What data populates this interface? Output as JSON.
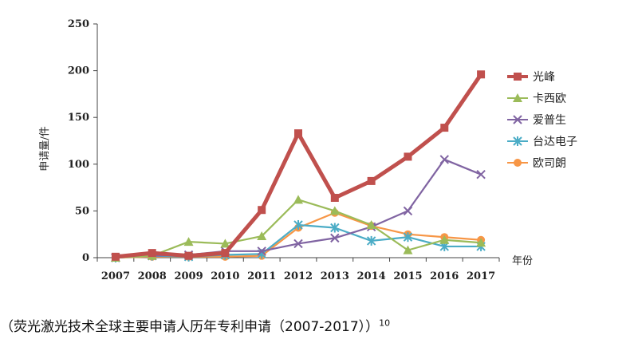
{
  "chart_data": {
    "type": "line",
    "title": "",
    "xlabel": "年份",
    "ylabel": "申请量/件",
    "categories": [
      "2007",
      "2008",
      "2009",
      "2010",
      "2011",
      "2012",
      "2013",
      "2014",
      "2015",
      "2016",
      "2017"
    ],
    "ylim": [
      0,
      250
    ],
    "yticks": [
      "0",
      "50",
      "100",
      "150",
      "200",
      "250"
    ],
    "grid": false,
    "legend_position": "right",
    "series": [
      {
        "name": "光峰",
        "color": "#c0504d",
        "marker": "square",
        "values": [
          1,
          5,
          2,
          5,
          51,
          133,
          64,
          82,
          108,
          139,
          196
        ]
      },
      {
        "name": "卡西欧",
        "color": "#9bbb59",
        "marker": "triangle",
        "values": [
          0,
          2,
          17,
          15,
          23,
          62,
          50,
          35,
          8,
          19,
          16
        ]
      },
      {
        "name": "爱普生",
        "color": "#8064a2",
        "marker": "x",
        "values": [
          0,
          2,
          3,
          7,
          7,
          15,
          21,
          33,
          50,
          105,
          89
        ]
      },
      {
        "name": "台达电子",
        "color": "#4bacc6",
        "marker": "star",
        "values": [
          0,
          2,
          1,
          3,
          4,
          35,
          32,
          18,
          22,
          12,
          12
        ]
      },
      {
        "name": "欧司朗",
        "color": "#f79646",
        "marker": "circle",
        "values": [
          0,
          1,
          1,
          1,
          2,
          32,
          48,
          34,
          25,
          22,
          19
        ]
      }
    ]
  },
  "caption": {
    "text": "（荧光激光技术全球主要申请人历年专利申请（2007-2017））",
    "ref": "10"
  }
}
